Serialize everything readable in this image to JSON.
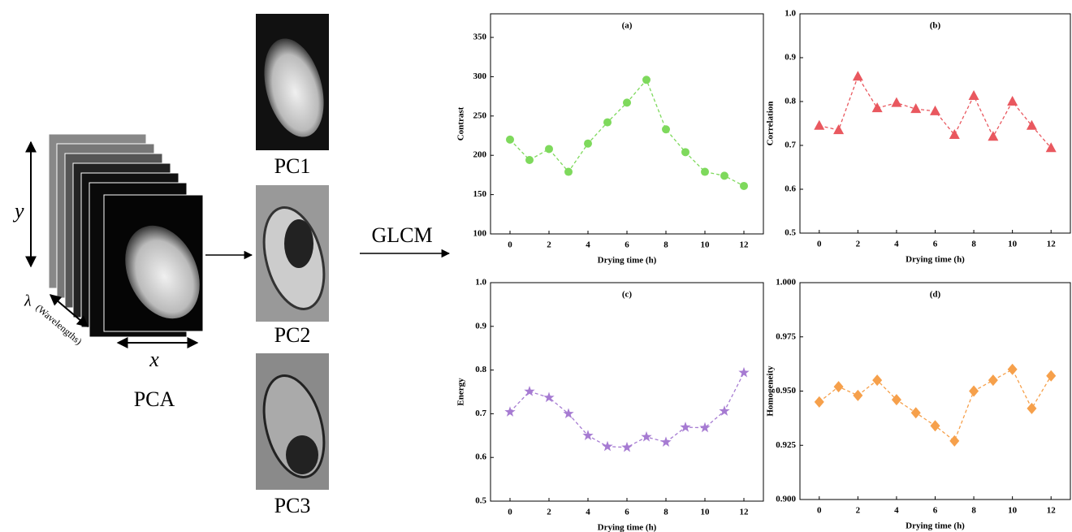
{
  "diagram": {
    "y_label": "y",
    "lambda_label": "λ",
    "wavelength_label": "(Wavelengths)",
    "x_label": "x",
    "pca_label": "PCA",
    "pc_labels": [
      "PC1",
      "PC2",
      "PC3"
    ],
    "arrow_label": "GLCM"
  },
  "chart_data": [
    {
      "type": "scatter",
      "title": "(a)",
      "xlabel": "Drying time (h)",
      "ylabel": "Contrast",
      "marker": "circle",
      "color": "#7ed95c",
      "x": [
        0,
        1,
        2,
        3,
        4,
        5,
        6,
        7,
        8,
        9,
        10,
        11,
        12
      ],
      "values": [
        220,
        194,
        208,
        179,
        215,
        242,
        267,
        296,
        233,
        204,
        179,
        174,
        161
      ],
      "xlim": [
        -1,
        13
      ],
      "xticks": [
        0,
        2,
        4,
        6,
        8,
        10,
        12
      ],
      "ylim": [
        100,
        380
      ],
      "yticks": [
        100,
        150,
        200,
        250,
        300,
        350
      ]
    },
    {
      "type": "scatter",
      "title": "(b)",
      "xlabel": "Drying time (h)",
      "ylabel": "Correlation",
      "marker": "triangle",
      "color": "#e9585f",
      "x": [
        0,
        1,
        2,
        3,
        4,
        5,
        6,
        7,
        8,
        9,
        10,
        11,
        12
      ],
      "values": [
        0.745,
        0.735,
        0.857,
        0.785,
        0.797,
        0.783,
        0.778,
        0.724,
        0.813,
        0.72,
        0.8,
        0.745,
        0.694
      ],
      "xlim": [
        -1,
        13
      ],
      "xticks": [
        0,
        2,
        4,
        6,
        8,
        10,
        12
      ],
      "ylim": [
        0.5,
        1.0
      ],
      "yticks": [
        0.5,
        0.6,
        0.7,
        0.8,
        0.9,
        {
          "value": 1,
          "label": "1.0"
        }
      ]
    },
    {
      "type": "scatter",
      "title": "(c)",
      "xlabel": "Drying time (h)",
      "ylabel": "Energy",
      "marker": "star",
      "color": "#a67bd2",
      "x": [
        0,
        1,
        2,
        3,
        4,
        5,
        6,
        7,
        8,
        9,
        10,
        11,
        12
      ],
      "values": [
        0.704,
        0.751,
        0.737,
        0.7,
        0.65,
        0.625,
        0.623,
        0.647,
        0.635,
        0.669,
        0.668,
        0.706,
        0.794
      ],
      "xlim": [
        -1,
        13
      ],
      "xticks": [
        0,
        2,
        4,
        6,
        8,
        10,
        12
      ],
      "ylim": [
        0.5,
        1.0
      ],
      "yticks": [
        0.5,
        0.6,
        0.7,
        0.8,
        0.9,
        {
          "value": 1,
          "label": "1.0"
        }
      ]
    },
    {
      "type": "scatter",
      "title": "(d)",
      "xlabel": "Drying time (h)",
      "ylabel": "Homogeneity",
      "marker": "diamond",
      "color": "#f6a04b",
      "x": [
        0,
        1,
        2,
        3,
        4,
        5,
        6,
        7,
        8,
        9,
        10,
        11,
        12
      ],
      "values": [
        0.945,
        0.952,
        0.948,
        0.955,
        0.946,
        0.94,
        0.934,
        0.927,
        0.95,
        0.955,
        0.96,
        0.942,
        0.957
      ],
      "xlim": [
        -1,
        13
      ],
      "xticks": [
        0,
        2,
        4,
        6,
        8,
        10,
        12
      ],
      "ylim": [
        0.9,
        1.0
      ],
      "yticks": [
        {
          "value": 0.9,
          "label": "0.900"
        },
        {
          "value": 0.925,
          "label": "0.925"
        },
        {
          "value": 0.95,
          "label": "0.950"
        },
        {
          "value": 0.975,
          "label": "0.975"
        },
        {
          "value": 1,
          "label": "1.000"
        }
      ]
    }
  ]
}
